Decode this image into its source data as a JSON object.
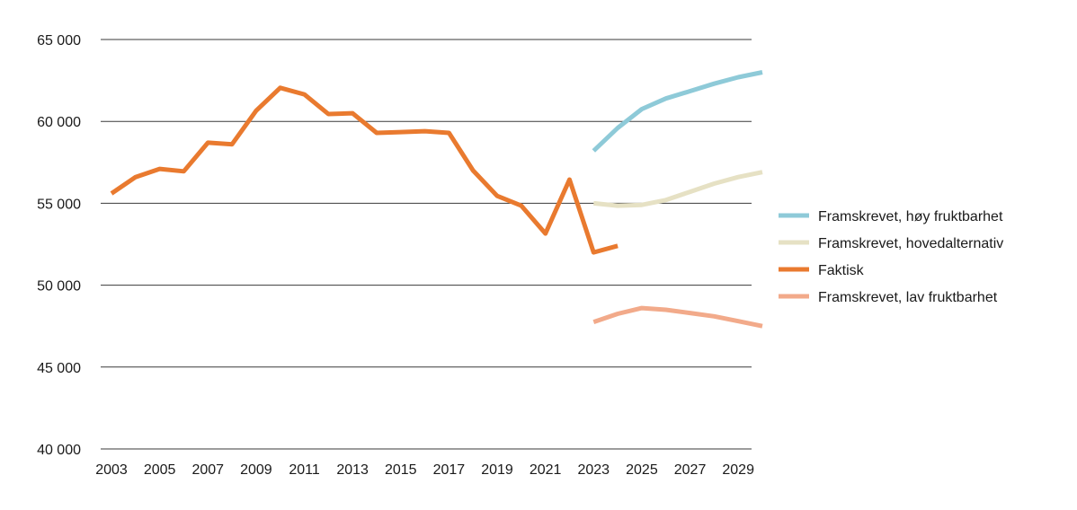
{
  "chart_data": {
    "type": "line",
    "title": "",
    "xlabel": "",
    "ylabel": "",
    "xlim": [
      2003,
      2030
    ],
    "ylim": [
      40000,
      65000
    ],
    "x_ticks": [
      2003,
      2005,
      2007,
      2009,
      2011,
      2013,
      2015,
      2017,
      2019,
      2021,
      2023,
      2025,
      2027,
      2029
    ],
    "x_tick_labels": [
      "2003",
      "2005",
      "2007",
      "2009",
      "2011",
      "2013",
      "2015",
      "2017",
      "2019",
      "2021",
      "2023",
      "2025",
      "2027",
      "2029"
    ],
    "y_ticks": [
      40000,
      45000,
      50000,
      55000,
      60000,
      65000
    ],
    "y_tick_labels": [
      "40 000",
      "45 000",
      "50 000",
      "55 000",
      "60 000",
      "65 000"
    ],
    "grid": "horizontal",
    "legend_position": "right",
    "series": [
      {
        "name": "Framskrevet, høy fruktbarhet",
        "color": "#8ecad8",
        "x": [
          2023,
          2024,
          2025,
          2026,
          2027,
          2028,
          2029,
          2030
        ],
        "y": [
          58200,
          59600,
          60750,
          61400,
          61850,
          62300,
          62700,
          63000
        ]
      },
      {
        "name": "Framskrevet, hovedalternativ",
        "color": "#e6e1c4",
        "x": [
          2023,
          2024,
          2025,
          2026,
          2027,
          2028,
          2029,
          2030
        ],
        "y": [
          55000,
          54850,
          54900,
          55200,
          55700,
          56200,
          56600,
          56900
        ]
      },
      {
        "name": "Faktisk",
        "color": "#e97a2f",
        "x": [
          2003,
          2004,
          2005,
          2006,
          2007,
          2008,
          2009,
          2010,
          2011,
          2012,
          2013,
          2014,
          2015,
          2016,
          2017,
          2018,
          2019,
          2020,
          2021,
          2022,
          2023,
          2024
        ],
        "y": [
          55600,
          56600,
          57100,
          56950,
          58700,
          58600,
          60650,
          62050,
          61650,
          60450,
          60500,
          59300,
          59350,
          59400,
          59300,
          57000,
          55450,
          54850,
          53150,
          56450,
          52000,
          52400
        ]
      },
      {
        "name": "Framskrevet, lav fruktbarhet",
        "color": "#f2aa8a",
        "x": [
          2023,
          2024,
          2025,
          2026,
          2027,
          2028,
          2029,
          2030
        ],
        "y": [
          47750,
          48250,
          48600,
          48500,
          48300,
          48100,
          47800,
          47500
        ]
      }
    ]
  }
}
